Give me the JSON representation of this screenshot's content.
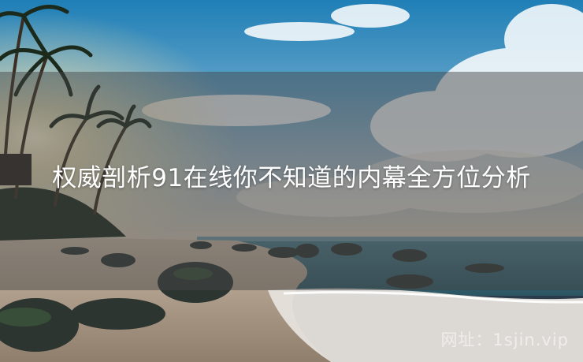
{
  "article": {
    "title": "权威剖析91在线你不知道的内幕全方位分析"
  },
  "image": {
    "description_icon": "beach-photo"
  },
  "watermark": {
    "text": "网址：1sjin.vip"
  },
  "colors": {
    "overlay": "#464646",
    "title_text": "#ffffff"
  }
}
